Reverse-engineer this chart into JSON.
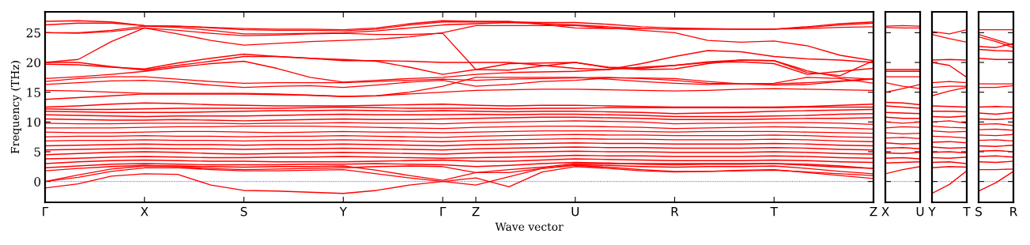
{
  "chart_data": [
    {
      "type": "line",
      "ylabel": "Frequency (THz)",
      "xlabel": "Wave vector",
      "color": "#ff0000",
      "line_style": "solid",
      "marker": "none",
      "categories": [
        "Γ",
        null,
        null,
        "X",
        null,
        null,
        "S",
        null,
        null,
        "Y",
        null,
        null,
        "Γ",
        "Z",
        null,
        null,
        "U",
        null,
        null,
        "R",
        null,
        null,
        "T",
        null,
        null,
        "Z"
      ],
      "ylim": [
        -3.5,
        28.5
      ],
      "yticks": [
        0,
        5,
        10,
        15,
        20,
        25
      ],
      "ref_lines": [
        {
          "axis": "y",
          "value": 0,
          "color": "#0000ff",
          "line_style": "dotted"
        }
      ],
      "series": [
        {
          "values": [
            -1.1,
            -0.4,
            0.9,
            1.3,
            1.2,
            -0.6,
            -1.5,
            -1.6,
            -1.8,
            -2.0,
            -1.5,
            -0.6,
            0.0,
            0.6,
            -0.9,
            1.6,
            2.5,
            2.2,
            1.8,
            1.6,
            1.7,
            1.9,
            2.0,
            1.5,
            1.0,
            0.5
          ]
        },
        {
          "values": [
            0.0,
            0.7,
            1.7,
            2.3,
            2.3,
            2.0,
            1.8,
            1.8,
            1.9,
            2.0,
            1.3,
            0.6,
            0.0,
            -0.6,
            0.8,
            2.2,
            2.8,
            2.7,
            2.5,
            2.4,
            2.5,
            2.5,
            2.6,
            2.2,
            1.7,
            1.3
          ]
        },
        {
          "values": [
            0.0,
            1.1,
            2.1,
            2.6,
            2.6,
            2.5,
            2.4,
            2.5,
            2.5,
            2.6,
            1.9,
            1.0,
            0.2,
            1.5,
            2.0,
            2.4,
            3.0,
            3.0,
            3.0,
            3.0,
            3.0,
            3.0,
            3.0,
            2.9,
            2.6,
            2.2
          ]
        },
        {
          "values": [
            1.8,
            2.2,
            2.5,
            2.7,
            2.5,
            2.2,
            2.0,
            2.1,
            2.2,
            2.3,
            2.5,
            2.6,
            2.5,
            1.5,
            1.5,
            2.2,
            2.7,
            2.4,
            2.0,
            1.7,
            1.7,
            1.8,
            1.9,
            1.6,
            1.3,
            1.0
          ]
        },
        {
          "values": [
            2.3,
            2.6,
            2.9,
            3.0,
            2.9,
            2.8,
            2.8,
            2.8,
            2.9,
            2.9,
            3.0,
            2.9,
            2.8,
            2.5,
            2.7,
            3.0,
            3.2,
            3.1,
            2.9,
            2.8,
            2.9,
            2.9,
            3.0,
            2.7,
            2.4,
            2.2
          ]
        },
        {
          "values": [
            3.0,
            3.3,
            3.5,
            3.6,
            3.5,
            3.4,
            3.4,
            3.3,
            3.3,
            3.3,
            3.4,
            3.5,
            3.6,
            3.4,
            3.4,
            3.6,
            3.8,
            3.7,
            3.6,
            3.5,
            3.5,
            3.5,
            3.6,
            3.5,
            3.3,
            3.2
          ]
        },
        {
          "values": [
            3.8,
            3.9,
            4.1,
            4.2,
            4.1,
            4.0,
            4.0,
            4.1,
            4.1,
            4.2,
            4.1,
            4.0,
            3.9,
            4.0,
            4.1,
            4.2,
            4.4,
            4.3,
            4.3,
            4.2,
            4.2,
            4.2,
            4.3,
            4.2,
            4.0,
            3.9
          ]
        },
        {
          "values": [
            4.5,
            4.7,
            4.9,
            5.0,
            4.9,
            4.7,
            4.6,
            4.7,
            4.8,
            4.9,
            4.8,
            4.7,
            4.6,
            4.8,
            4.9,
            5.0,
            5.1,
            5.0,
            5.0,
            4.9,
            4.9,
            4.9,
            5.0,
            4.9,
            4.7,
            4.6
          ]
        },
        {
          "values": [
            5.3,
            5.4,
            5.5,
            5.6,
            5.5,
            5.5,
            5.4,
            5.5,
            5.5,
            5.6,
            5.5,
            5.4,
            5.3,
            5.5,
            5.6,
            5.7,
            5.8,
            5.7,
            5.7,
            5.6,
            5.6,
            5.6,
            5.7,
            5.6,
            5.4,
            5.3
          ]
        },
        {
          "values": [
            6.0,
            6.1,
            6.2,
            6.3,
            6.2,
            6.2,
            6.1,
            6.2,
            6.2,
            6.3,
            6.2,
            6.1,
            6.0,
            6.2,
            6.3,
            6.4,
            6.5,
            6.4,
            6.4,
            6.3,
            6.3,
            6.3,
            6.4,
            6.3,
            6.1,
            6.0
          ]
        },
        {
          "values": [
            6.8,
            6.9,
            6.9,
            7.0,
            6.9,
            6.9,
            6.8,
            6.9,
            6.9,
            7.0,
            6.9,
            6.8,
            6.7,
            6.9,
            7.0,
            7.1,
            7.2,
            7.1,
            7.1,
            7.0,
            7.0,
            7.0,
            7.1,
            7.0,
            6.8,
            6.7
          ]
        },
        {
          "values": [
            7.5,
            7.6,
            7.6,
            7.7,
            7.6,
            7.6,
            7.5,
            7.6,
            7.6,
            7.7,
            7.6,
            7.5,
            7.4,
            7.6,
            7.7,
            7.8,
            7.9,
            7.8,
            7.8,
            7.7,
            7.7,
            7.7,
            7.8,
            7.7,
            7.5,
            7.4
          ]
        },
        {
          "values": [
            8.3,
            8.2,
            8.2,
            8.3,
            8.4,
            8.4,
            8.3,
            8.2,
            8.3,
            8.4,
            8.3,
            8.3,
            8.2,
            8.3,
            8.4,
            8.5,
            8.5,
            8.5,
            8.4,
            8.3,
            8.4,
            8.4,
            8.4,
            8.3,
            8.2,
            8.1
          ]
        },
        {
          "values": [
            9.0,
            9.0,
            9.0,
            9.1,
            9.2,
            9.2,
            9.3,
            9.3,
            9.3,
            9.2,
            9.1,
            9.0,
            8.9,
            9.1,
            9.2,
            9.3,
            9.3,
            9.2,
            9.1,
            8.9,
            9.0,
            9.1,
            9.2,
            9.1,
            9.0,
            8.8
          ]
        },
        {
          "values": [
            9.8,
            9.7,
            9.7,
            9.8,
            9.8,
            9.8,
            9.7,
            9.8,
            9.8,
            9.9,
            9.8,
            9.8,
            9.7,
            9.9,
            10.0,
            10.1,
            10.2,
            10.1,
            10.0,
            9.7,
            9.8,
            9.8,
            9.9,
            9.9,
            9.8,
            9.6
          ]
        },
        {
          "values": [
            10.5,
            10.4,
            10.3,
            10.3,
            10.4,
            10.3,
            10.2,
            10.3,
            10.4,
            10.5,
            10.4,
            10.4,
            10.5,
            10.6,
            10.7,
            10.8,
            10.8,
            10.7,
            10.6,
            10.4,
            10.4,
            10.4,
            10.5,
            10.6,
            10.6,
            10.7
          ]
        },
        {
          "values": [
            11.2,
            11.1,
            11.0,
            10.9,
            11.0,
            11.0,
            11.0,
            11.1,
            11.2,
            11.3,
            11.2,
            11.2,
            11.2,
            11.3,
            11.2,
            11.3,
            11.3,
            11.2,
            11.1,
            10.9,
            10.9,
            10.9,
            11.0,
            11.1,
            11.3,
            11.4
          ]
        },
        {
          "values": [
            11.8,
            11.7,
            11.6,
            11.6,
            11.6,
            11.7,
            11.8,
            11.9,
            11.9,
            12.0,
            11.9,
            11.8,
            11.9,
            11.8,
            11.7,
            11.8,
            11.8,
            11.7,
            11.6,
            11.4,
            11.5,
            11.6,
            11.8,
            11.9,
            12.0,
            12.1
          ]
        },
        {
          "values": [
            12.2,
            12.1,
            12.1,
            12.2,
            12.3,
            12.3,
            12.3,
            12.3,
            12.4,
            12.5,
            12.4,
            12.3,
            12.3,
            12.3,
            12.2,
            12.3,
            12.3,
            12.4,
            12.4,
            12.4,
            12.4,
            12.4,
            12.4,
            12.5,
            12.5,
            12.5
          ]
        },
        {
          "values": [
            12.5,
            12.7,
            13.0,
            13.2,
            13.1,
            12.9,
            12.8,
            12.7,
            12.7,
            12.7,
            12.8,
            12.9,
            13.0,
            12.8,
            12.7,
            12.8,
            12.8,
            12.7,
            12.6,
            12.5,
            12.5,
            12.5,
            12.5,
            12.6,
            12.8,
            13.0
          ]
        },
        {
          "values": [
            13.8,
            14.1,
            14.4,
            14.7,
            14.7,
            14.7,
            14.7,
            14.6,
            14.5,
            14.3,
            14.4,
            14.7,
            15.0,
            15.3,
            15.4,
            15.5,
            15.5,
            15.4,
            15.3,
            15.2,
            15.3,
            15.5,
            15.6,
            15.5,
            15.4,
            15.3
          ]
        },
        {
          "values": [
            15.3,
            15.2,
            15.0,
            14.8,
            14.8,
            14.8,
            14.8,
            14.7,
            14.5,
            14.3,
            14.4,
            15.0,
            16.0,
            17.5,
            17.5,
            17.5,
            17.5,
            17.2,
            16.8,
            16.5,
            16.3,
            16.4,
            16.4,
            16.6,
            16.9,
            17.3
          ]
        },
        {
          "values": [
            16.3,
            16.6,
            16.9,
            17.0,
            16.7,
            16.2,
            15.8,
            16.0,
            16.1,
            15.8,
            16.2,
            16.7,
            17.0,
            16.0,
            16.3,
            16.8,
            17.0,
            17.4,
            17.4,
            17.3,
            16.8,
            16.4,
            16.2,
            16.3,
            16.8,
            17.2
          ]
        },
        {
          "values": [
            16.8,
            17.3,
            17.6,
            17.6,
            17.2,
            16.8,
            16.5,
            16.6,
            16.6,
            16.6,
            16.8,
            17.0,
            17.2,
            17.0,
            17.2,
            17.3,
            17.4,
            17.5,
            17.3,
            17.0,
            16.5,
            16.4,
            16.5,
            17.5,
            17.3,
            16.5
          ]
        },
        {
          "values": [
            17.3,
            17.6,
            18.0,
            18.5,
            19.2,
            19.8,
            20.2,
            19.0,
            17.5,
            16.7,
            17.0,
            17.3,
            17.5,
            18.0,
            18.3,
            18.4,
            18.5,
            18.8,
            19.2,
            19.5,
            20.0,
            20.1,
            19.8,
            18.0,
            18.5,
            19.0
          ]
        },
        {
          "values": [
            20.0,
            20.0,
            19.3,
            18.7,
            19.5,
            20.2,
            21.0,
            21.0,
            20.7,
            20.3,
            20.3,
            20.2,
            20.0,
            20.0,
            20.0,
            19.5,
            19.0,
            18.8,
            19.8,
            21.0,
            22.0,
            21.8,
            21.0,
            20.6,
            20.4,
            20.0
          ]
        },
        {
          "values": [
            19.7,
            19.6,
            19.2,
            18.9,
            19.9,
            20.7,
            21.4,
            21.0,
            20.7,
            20.5,
            20.2,
            19.2,
            18.0,
            18.8,
            19.8,
            19.9,
            20.0,
            19.2,
            19.0,
            19.5,
            20.1,
            20.4,
            20.3,
            18.3,
            17.8,
            20.3
          ]
        },
        {
          "values": [
            20.0,
            20.5,
            23.5,
            25.8,
            25.4,
            24.9,
            24.5,
            24.6,
            24.8,
            24.9,
            24.7,
            24.7,
            24.9,
            18.8,
            18.7,
            19.4,
            20.0,
            19.1,
            18.8,
            18.9,
            19.8,
            20.4,
            20.3,
            18.6,
            17.5,
            17.2
          ]
        },
        {
          "values": [
            25.0,
            24.9,
            25.2,
            25.8,
            24.8,
            23.7,
            22.9,
            23.2,
            23.5,
            23.7,
            23.9,
            24.3,
            25.0,
            26.2,
            26.2,
            26.2,
            26.2,
            25.8,
            25.4,
            25.0,
            23.7,
            23.4,
            23.6,
            22.8,
            21.2,
            20.3
          ]
        },
        {
          "values": [
            25.0,
            25.0,
            25.4,
            26.1,
            25.9,
            25.4,
            24.8,
            24.8,
            24.9,
            25.0,
            25.3,
            25.8,
            26.3,
            26.5,
            26.7,
            26.5,
            26.3,
            26.0,
            25.7,
            25.6,
            25.6,
            25.6,
            25.6,
            25.7,
            25.9,
            26.0
          ]
        },
        {
          "values": [
            26.3,
            26.6,
            26.6,
            26.2,
            26.1,
            25.8,
            25.5,
            25.4,
            25.4,
            25.3,
            25.6,
            26.3,
            26.8,
            26.8,
            26.8,
            26.7,
            26.7,
            26.4,
            26.0,
            25.8,
            25.7,
            25.6,
            25.6,
            25.9,
            26.3,
            26.6
          ]
        },
        {
          "values": [
            26.9,
            27.0,
            26.8,
            26.2,
            26.1,
            25.9,
            25.7,
            25.6,
            25.6,
            25.5,
            25.8,
            26.5,
            27.0,
            26.9,
            26.9,
            26.4,
            25.8,
            25.7,
            25.7,
            25.6,
            25.6,
            25.6,
            25.6,
            26.0,
            26.5,
            26.8
          ]
        }
      ]
    },
    {
      "type": "line",
      "color": "#ff0000",
      "line_style": "solid",
      "marker": "none",
      "tick_labels": "x",
      "categories": [
        "X",
        null,
        "U"
      ],
      "ylim": [
        -3.5,
        28.5
      ],
      "yticks": [
        0,
        5,
        10,
        15,
        20,
        25
      ],
      "ref_lines": [
        {
          "axis": "y",
          "value": 0,
          "color": "#0000ff",
          "line_style": "dotted"
        }
      ],
      "series": [
        {
          "values": [
            26.1,
            26.2,
            26.1
          ]
        },
        {
          "values": [
            25.9,
            25.8,
            25.8
          ]
        },
        {
          "values": [
            18.8,
            18.8,
            18.8
          ]
        },
        {
          "values": [
            18.5,
            18.5,
            18.5
          ]
        },
        {
          "values": [
            17.6,
            17.6,
            17.6
          ]
        },
        {
          "values": [
            16.6,
            16.0,
            15.6
          ]
        },
        {
          "values": [
            15.0,
            15.6,
            16.3
          ]
        },
        {
          "values": [
            13.3,
            13.2,
            12.9
          ]
        },
        {
          "values": [
            12.7,
            12.5,
            12.3
          ]
        },
        {
          "values": [
            11.6,
            11.5,
            11.4
          ]
        },
        {
          "values": [
            10.8,
            10.6,
            10.6
          ]
        },
        {
          "values": [
            10.0,
            9.8,
            10.0
          ]
        },
        {
          "values": [
            9.0,
            9.2,
            9.1
          ]
        },
        {
          "values": [
            8.2,
            8.0,
            8.1
          ]
        },
        {
          "values": [
            7.3,
            7.4,
            7.2
          ]
        },
        {
          "values": [
            6.5,
            6.3,
            6.4
          ]
        },
        {
          "values": [
            5.6,
            5.7,
            5.5
          ]
        },
        {
          "values": [
            4.8,
            4.7,
            4.9
          ]
        },
        {
          "values": [
            3.9,
            4.0,
            3.8
          ]
        },
        {
          "values": [
            3.1,
            3.2,
            3.3
          ]
        },
        {
          "values": [
            1.3,
            2.0,
            2.5
          ]
        }
      ]
    },
    {
      "type": "line",
      "color": "#ff0000",
      "line_style": "solid",
      "marker": "none",
      "tick_labels": "x",
      "categories": [
        "Y",
        null,
        "T"
      ],
      "ylim": [
        -3.5,
        28.5
      ],
      "yticks": [
        0,
        5,
        10,
        15,
        20,
        25
      ],
      "ref_lines": [
        {
          "axis": "y",
          "value": 0,
          "color": "#0000ff",
          "line_style": "dotted"
        }
      ],
      "series": [
        {
          "values": [
            25.2,
            24.8,
            25.5
          ]
        },
        {
          "values": [
            24.7,
            24.0,
            23.4
          ]
        },
        {
          "values": [
            20.4,
            20.5,
            20.4
          ]
        },
        {
          "values": [
            20.0,
            19.5,
            17.5
          ]
        },
        {
          "values": [
            16.6,
            16.8,
            16.6
          ]
        },
        {
          "values": [
            15.8,
            16.0,
            16.0
          ]
        },
        {
          "values": [
            14.4,
            15.2,
            15.8
          ]
        },
        {
          "values": [
            12.7,
            12.6,
            12.5
          ]
        },
        {
          "values": [
            11.8,
            11.8,
            11.7
          ]
        },
        {
          "values": [
            10.9,
            10.8,
            11.0
          ]
        },
        {
          "values": [
            10.0,
            10.2,
            9.8
          ]
        },
        {
          "values": [
            9.3,
            9.1,
            9.0
          ]
        },
        {
          "values": [
            8.5,
            8.3,
            8.4
          ]
        },
        {
          "values": [
            7.6,
            7.5,
            7.3
          ]
        },
        {
          "values": [
            6.6,
            6.7,
            6.5
          ]
        },
        {
          "values": [
            5.8,
            5.6,
            5.7
          ]
        },
        {
          "values": [
            4.9,
            5.0,
            4.8
          ]
        },
        {
          "values": [
            4.0,
            3.9,
            4.1
          ]
        },
        {
          "values": [
            3.2,
            3.3,
            3.0
          ]
        },
        {
          "values": [
            2.3,
            2.5,
            2.4
          ]
        },
        {
          "values": [
            -2.0,
            -0.5,
            1.8
          ]
        }
      ]
    },
    {
      "type": "line",
      "color": "#ff0000",
      "line_style": "solid",
      "marker": "none",
      "tick_labels": "x",
      "categories": [
        "S",
        null,
        "R"
      ],
      "ylim": [
        -3.5,
        28.5
      ],
      "yticks": [
        0,
        5,
        10,
        15,
        20,
        25
      ],
      "ref_lines": [
        {
          "axis": "y",
          "value": 0,
          "color": "#0000ff",
          "line_style": "dotted"
        }
      ],
      "series": [
        {
          "values": [
            25.5,
            25.5,
            25.5
          ]
        },
        {
          "values": [
            24.7,
            23.8,
            22.9
          ]
        },
        {
          "values": [
            24.3,
            23.5,
            22.5
          ]
        },
        {
          "values": [
            22.7,
            22.5,
            23.2
          ]
        },
        {
          "values": [
            22.2,
            22.0,
            21.9
          ]
        },
        {
          "values": [
            20.7,
            20.5,
            20.5
          ]
        },
        {
          "values": [
            16.4,
            16.4,
            16.4
          ]
        },
        {
          "values": [
            15.8,
            15.8,
            16.1
          ]
        },
        {
          "values": [
            12.5,
            12.6,
            12.5
          ]
        },
        {
          "values": [
            11.5,
            11.3,
            11.6
          ]
        },
        {
          "values": [
            10.5,
            10.4,
            10.6
          ]
        },
        {
          "values": [
            9.6,
            9.7,
            9.4
          ]
        },
        {
          "values": [
            8.7,
            8.8,
            8.6
          ]
        },
        {
          "values": [
            7.8,
            7.7,
            7.9
          ]
        },
        {
          "values": [
            6.9,
            7.0,
            6.8
          ]
        },
        {
          "values": [
            6.0,
            5.9,
            6.1
          ]
        },
        {
          "values": [
            5.1,
            5.2,
            5.0
          ]
        },
        {
          "values": [
            4.2,
            4.3,
            4.1
          ]
        },
        {
          "values": [
            3.3,
            3.2,
            3.4
          ]
        },
        {
          "values": [
            2.0,
            2.0,
            2.1
          ]
        },
        {
          "values": [
            -1.6,
            -0.2,
            1.7
          ]
        }
      ]
    }
  ]
}
